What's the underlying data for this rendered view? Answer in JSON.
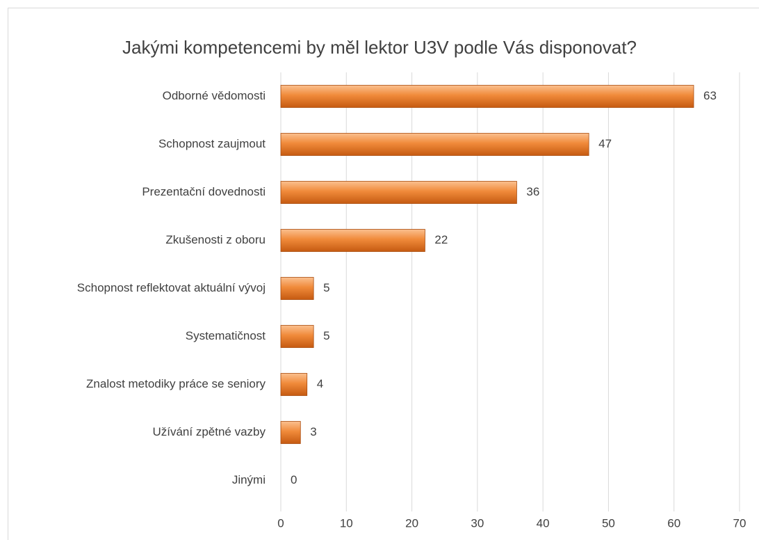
{
  "chart_data": {
    "type": "bar",
    "orientation": "horizontal",
    "title": "Jakými kompetencemi by měl lektor U3V podle Vás disponovat?",
    "categories": [
      "Odborné vědomosti",
      "Schopnost zaujmout",
      "Prezentační dovednosti",
      "Zkušenosti z oboru",
      "Schopnost reflektovat aktuální vývoj",
      "Systematičnost",
      "Znalost metodiky práce se seniory",
      "Užívání zpětné vazby",
      "Jinými"
    ],
    "values": [
      63,
      47,
      36,
      22,
      5,
      5,
      4,
      3,
      0
    ],
    "color": "#ed7d31",
    "xlim": [
      0,
      70
    ],
    "xticks": [
      0,
      10,
      20,
      30,
      40,
      50,
      60,
      70
    ],
    "grid": true
  }
}
